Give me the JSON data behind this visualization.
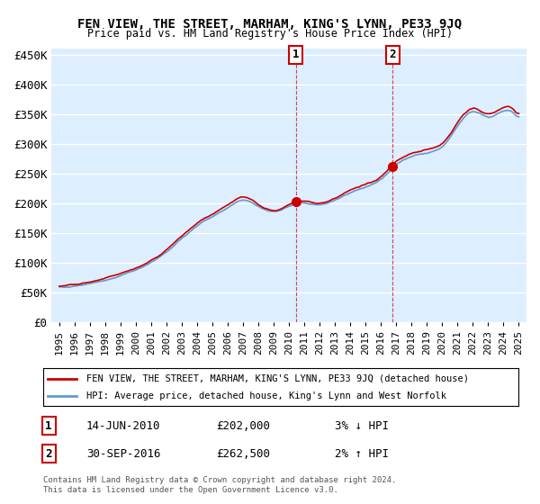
{
  "title": "FEN VIEW, THE STREET, MARHAM, KING'S LYNN, PE33 9JQ",
  "subtitle": "Price paid vs. HM Land Registry's House Price Index (HPI)",
  "ylim": [
    0,
    460000
  ],
  "yticks": [
    0,
    50000,
    100000,
    150000,
    200000,
    250000,
    300000,
    350000,
    400000,
    450000
  ],
  "ytick_labels": [
    "£0",
    "£50K",
    "£100K",
    "£150K",
    "£200K",
    "£250K",
    "£300K",
    "£350K",
    "£400K",
    "£450K"
  ],
  "xlim_start": 1994.5,
  "xlim_end": 2025.5,
  "bg_color": "#ddeeff",
  "plot_bg": "#ddeeff",
  "grid_color": "#ffffff",
  "red_color": "#cc0000",
  "blue_color": "#6699cc",
  "sale1_x": 2010.45,
  "sale1_y": 202000,
  "sale2_x": 2016.75,
  "sale2_y": 262500,
  "sale1_label": "1",
  "sale2_label": "2",
  "legend_line1": "FEN VIEW, THE STREET, MARHAM, KING'S LYNN, PE33 9JQ (detached house)",
  "legend_line2": "HPI: Average price, detached house, King's Lynn and West Norfolk",
  "note1_label": "1",
  "note1_date": "14-JUN-2010",
  "note1_price": "£202,000",
  "note1_hpi": "3% ↓ HPI",
  "note2_label": "2",
  "note2_date": "30-SEP-2016",
  "note2_price": "£262,500",
  "note2_hpi": "2% ↑ HPI",
  "footer": "Contains HM Land Registry data © Crown copyright and database right 2024.\nThis data is licensed under the Open Government Licence v3.0."
}
